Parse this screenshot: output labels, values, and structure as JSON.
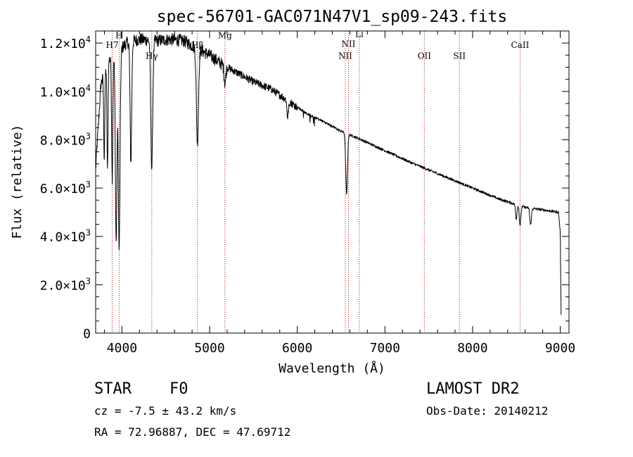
{
  "chart_data": {
    "type": "line",
    "title": "spec-56701-GAC071N47V1_sp09-243.fits",
    "xlabel": "Wavelength (Å)",
    "ylabel": "Flux (relative)",
    "xlim": [
      3700,
      9100
    ],
    "ylim": [
      0,
      12500
    ],
    "x_ticks": [
      4000,
      5000,
      6000,
      7000,
      8000,
      9000
    ],
    "x_tick_labels": [
      "4000",
      "5000",
      "6000",
      "7000",
      "8000",
      "9000"
    ],
    "y_ticks": [
      {
        "value": 0,
        "mantissa": "0",
        "exp": ""
      },
      {
        "value": 2000,
        "mantissa": "2.0×10",
        "exp": "3"
      },
      {
        "value": 4000,
        "mantissa": "4.0×10",
        "exp": "3"
      },
      {
        "value": 6000,
        "mantissa": "6.0×10",
        "exp": "3"
      },
      {
        "value": 8000,
        "mantissa": "8.0×10",
        "exp": "3"
      },
      {
        "value": 10000,
        "mantissa": "1.0×10",
        "exp": "4"
      },
      {
        "value": 12000,
        "mantissa": "1.2×10",
        "exp": "4"
      }
    ],
    "line_color": "#000000",
    "marker_color": "#aa1111",
    "lines": [
      {
        "name": "H7",
        "label": "H7",
        "wavelength": 3889,
        "label_flux": 11800
      },
      {
        "name": "H",
        "label": "H",
        "wavelength": 3968,
        "label_flux": 12200
      },
      {
        "name": "Hg",
        "label": "Hγ",
        "wavelength": 4340,
        "label_flux": 11350
      },
      {
        "name": "Hb",
        "label": "Hβ",
        "wavelength": 4861,
        "label_flux": 11800
      },
      {
        "name": "Mg",
        "label": "Mg",
        "wavelength": 5175,
        "label_flux": 12200
      },
      {
        "name": "NII-a",
        "label": "NII",
        "wavelength": 6548,
        "label_flux": 11350
      },
      {
        "name": "NII-b",
        "label": "NII",
        "wavelength": 6584,
        "label_flux": 11850
      },
      {
        "name": "Li",
        "label": "Li",
        "wavelength": 6708,
        "label_flux": 12250
      },
      {
        "name": "OII",
        "label": "OII",
        "wavelength": 7450,
        "label_flux": 11350
      },
      {
        "name": "SII",
        "label": "SII",
        "wavelength": 7850,
        "label_flux": 11350
      },
      {
        "name": "CaII",
        "label": "CaII",
        "wavelength": 8542,
        "label_flux": 11800
      }
    ],
    "continuum": [
      [
        3700,
        6800
      ],
      [
        3760,
        10300
      ],
      [
        3850,
        11300
      ],
      [
        3950,
        11600
      ],
      [
        4050,
        12000
      ],
      [
        4200,
        12150
      ],
      [
        4400,
        12100
      ],
      [
        4550,
        12150
      ],
      [
        4700,
        12100
      ],
      [
        4850,
        11800
      ],
      [
        5000,
        11500
      ],
      [
        5150,
        11100
      ],
      [
        5300,
        10800
      ],
      [
        5500,
        10400
      ],
      [
        5700,
        10100
      ],
      [
        5900,
        9600
      ],
      [
        6100,
        9100
      ],
      [
        6300,
        8750
      ],
      [
        6500,
        8350
      ],
      [
        6700,
        8050
      ],
      [
        7000,
        7550
      ],
      [
        7300,
        7050
      ],
      [
        7600,
        6600
      ],
      [
        8000,
        6000
      ],
      [
        8300,
        5550
      ],
      [
        8600,
        5200
      ],
      [
        8800,
        5100
      ],
      [
        8980,
        5000
      ],
      [
        9000,
        4200
      ],
      [
        9010,
        800
      ]
    ],
    "absorption": [
      {
        "center": 3798,
        "depth": 3500,
        "width": 6
      },
      {
        "center": 3835,
        "depth": 4500,
        "width": 6
      },
      {
        "center": 3889,
        "depth": 5000,
        "width": 7
      },
      {
        "center": 3934,
        "depth": 7800,
        "width": 9
      },
      {
        "center": 3968,
        "depth": 8200,
        "width": 10
      },
      {
        "center": 4102,
        "depth": 5000,
        "width": 9
      },
      {
        "center": 4340,
        "depth": 5300,
        "width": 11
      },
      {
        "center": 4861,
        "depth": 3900,
        "width": 12
      },
      {
        "center": 5175,
        "depth": 700,
        "width": 10
      },
      {
        "center": 5890,
        "depth": 700,
        "width": 8
      },
      {
        "center": 6563,
        "depth": 2500,
        "width": 10
      },
      {
        "center": 8498,
        "depth": 600,
        "width": 8
      },
      {
        "center": 8542,
        "depth": 800,
        "width": 9
      },
      {
        "center": 8662,
        "depth": 700,
        "width": 9
      }
    ]
  },
  "info": {
    "class_label": "STAR",
    "subclass": "F0",
    "survey": "LAMOST DR2",
    "redshift": "cz = -7.5 ± 43.2 km/s",
    "obs_date": "Obs-Date: 20140212",
    "coords": "RA =  72.96887, DEC =  47.69712"
  }
}
